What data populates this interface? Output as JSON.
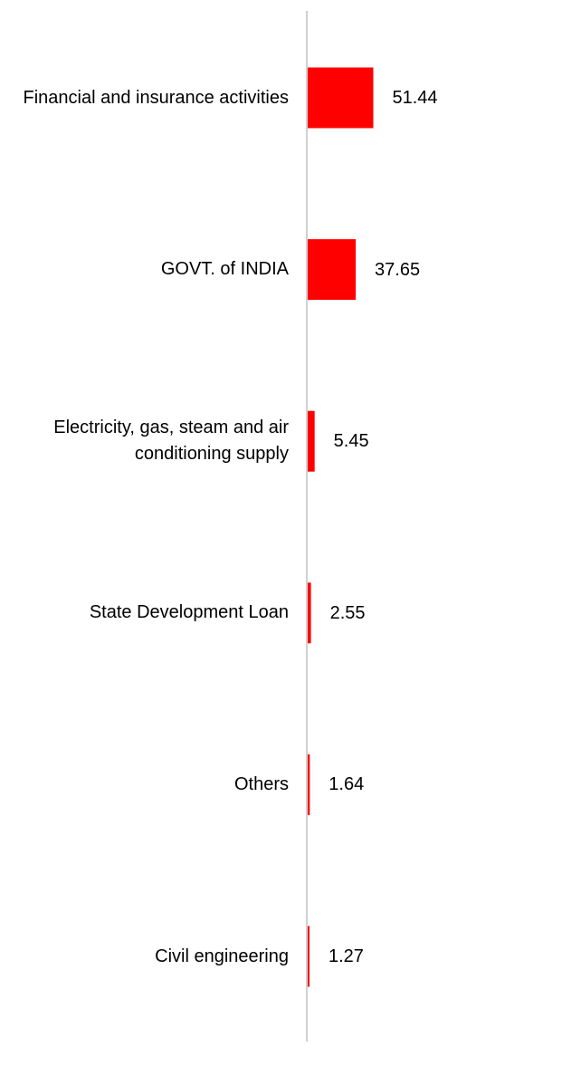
{
  "chart_data": {
    "type": "bar",
    "orientation": "horizontal",
    "title": "",
    "xlabel": "",
    "ylabel": "",
    "categories": [
      "Financial and insurance activities",
      "GOVT. of INDIA",
      "Electricity, gas, steam and air conditioning supply",
      "State Development Loan",
      "Others",
      "Civil engineering"
    ],
    "values": [
      51.44,
      37.65,
      5.45,
      2.55,
      1.64,
      1.27
    ],
    "value_labels": [
      "51.44",
      "37.65",
      "5.45",
      "2.55",
      "1.64",
      "1.27"
    ],
    "xlim": [
      0,
      215
    ],
    "grid": false,
    "legend": "none",
    "bar_color": "#ff0000",
    "axis_color": "#d0d0d0"
  }
}
